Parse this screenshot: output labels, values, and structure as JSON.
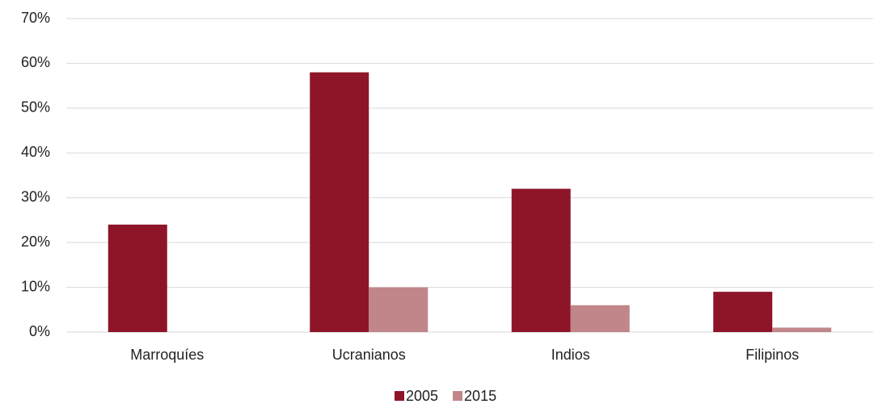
{
  "chart_data": {
    "type": "bar",
    "categories": [
      "Marroquíes",
      "Ucranianos",
      "Indios",
      "Filipinos"
    ],
    "series": [
      {
        "name": "2005",
        "color": "#8e1528",
        "values": [
          24,
          58,
          32,
          9
        ]
      },
      {
        "name": "2015",
        "color": "#c08689",
        "values": [
          0,
          10,
          6,
          1
        ]
      }
    ],
    "ylim": [
      0,
      70
    ],
    "yticks": [
      {
        "value": 0,
        "label": "0%"
      },
      {
        "value": 10,
        "label": "10%"
      },
      {
        "value": 20,
        "label": "20%"
      },
      {
        "value": 30,
        "label": "30%"
      },
      {
        "value": 40,
        "label": "40%"
      },
      {
        "value": 50,
        "label": "50%"
      },
      {
        "value": 60,
        "label": "60%"
      },
      {
        "value": 70,
        "label": "70%"
      }
    ],
    "grid": true,
    "legend": "bottom"
  }
}
